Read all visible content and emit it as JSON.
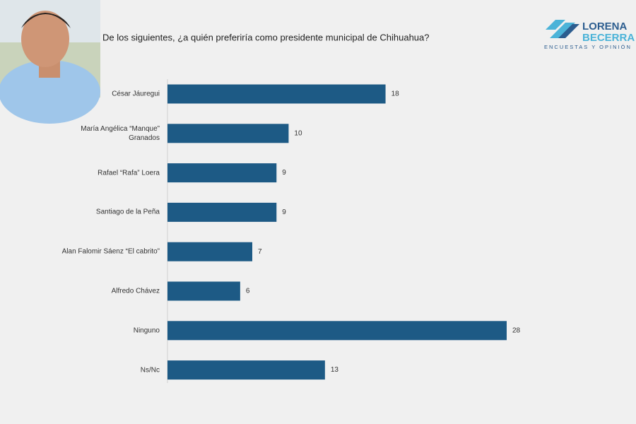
{
  "chart_data": {
    "type": "bar",
    "orientation": "horizontal",
    "title": "De los siguientes, ¿a quién preferiría como presidente municipal de Chihuahua?",
    "categories": [
      "César Jáuregui",
      "María Angélica “Manque” Granados",
      "Rafael “Rafa” Loera",
      "Santiago de la Peña",
      "Alan Falomir Sáenz “El cabrito”",
      "Alfredo Chávez",
      "Ninguno",
      "Ns/Nc"
    ],
    "values": [
      18,
      10,
      9,
      9,
      7,
      6,
      28,
      13
    ],
    "color": "#1d5a85"
  },
  "logo": {
    "name_top": "LORENA",
    "name_bottom": "BECERRA",
    "tagline": "ENCUESTAS Y OPINIÓN"
  }
}
